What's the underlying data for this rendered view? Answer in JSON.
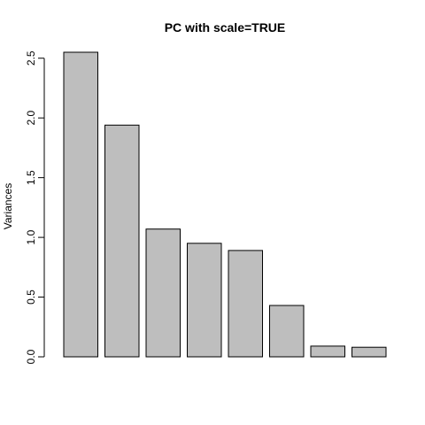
{
  "chart_data": {
    "type": "bar",
    "title": "PC with scale=TRUE",
    "ylabel": "Variances",
    "xlabel": "",
    "ylim": [
      0,
      2.55
    ],
    "yticks": [
      0.0,
      0.5,
      1.0,
      1.5,
      2.0,
      2.5
    ],
    "ytick_labels": [
      "0.0",
      "0.5",
      "1.0",
      "1.5",
      "2.0",
      "2.5"
    ],
    "values": [
      2.55,
      1.94,
      1.07,
      0.95,
      0.89,
      0.43,
      0.09,
      0.08
    ],
    "bar_color": "#bebebe",
    "grid": false
  }
}
